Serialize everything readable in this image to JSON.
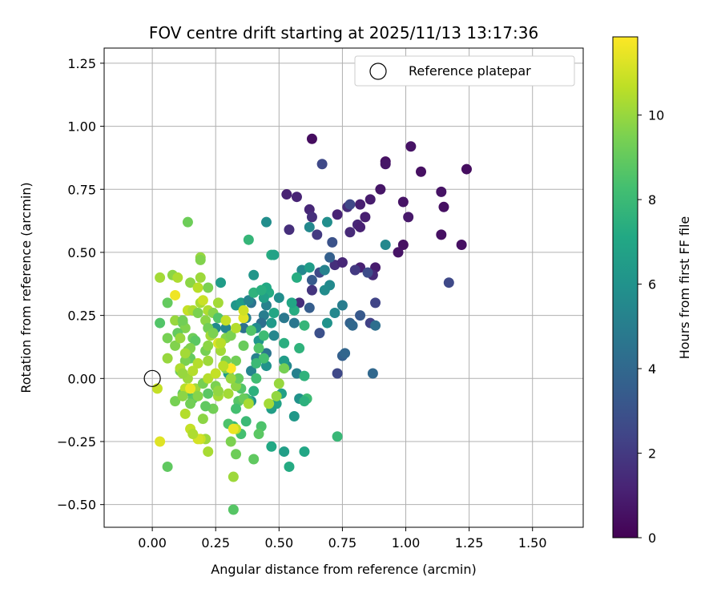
{
  "chart_data": {
    "type": "scatter",
    "title": "FOV centre drift starting at 2025/11/13 13:17:36",
    "xlabel": "Angular distance from reference (arcmin)",
    "ylabel": "Rotation from reference (arcmin)",
    "xlim": [
      -0.19,
      1.7
    ],
    "ylim": [
      -0.59,
      1.31
    ],
    "xticks": [
      "0.00",
      "0.25",
      "0.50",
      "0.75",
      "1.00",
      "1.25",
      "1.50"
    ],
    "xtick_values": [
      0,
      0.25,
      0.5,
      0.75,
      1.0,
      1.25,
      1.5
    ],
    "yticks": [
      "−0.50",
      "−0.25",
      "0.00",
      "0.25",
      "0.50",
      "0.75",
      "1.00",
      "1.25"
    ],
    "ytick_values": [
      -0.5,
      -0.25,
      0,
      0.25,
      0.5,
      0.75,
      1.0,
      1.25
    ],
    "grid": true,
    "legend": {
      "position": "top-right",
      "label": "Reference platepar"
    },
    "reference_point": {
      "x": 0,
      "y": 0
    },
    "colorbar": {
      "label": "Hours from first FF file",
      "ticks": [
        "0",
        "2",
        "4",
        "6",
        "8",
        "10"
      ],
      "tick_values": [
        0,
        2,
        4,
        6,
        8,
        10
      ],
      "range": [
        0,
        11.85
      ],
      "colormap": "viridis"
    },
    "points": [
      [
        0.63,
        0.95,
        0.4
      ],
      [
        1.02,
        0.92,
        0.6
      ],
      [
        0.92,
        0.86,
        0.5
      ],
      [
        0.92,
        0.85,
        0.7
      ],
      [
        1.06,
        0.82,
        0.5
      ],
      [
        1.24,
        0.83,
        0.4
      ],
      [
        1.14,
        0.74,
        0.6
      ],
      [
        0.9,
        0.75,
        0.7
      ],
      [
        0.86,
        0.71,
        0.9
      ],
      [
        0.99,
        0.7,
        0.6
      ],
      [
        1.15,
        0.68,
        0.5
      ],
      [
        0.53,
        0.73,
        1.1
      ],
      [
        0.57,
        0.72,
        1.2
      ],
      [
        0.62,
        0.67,
        1.3
      ],
      [
        0.82,
        0.69,
        1.0
      ],
      [
        0.77,
        0.68,
        1.5
      ],
      [
        0.73,
        0.65,
        1.2
      ],
      [
        1.01,
        0.64,
        0.8
      ],
      [
        0.84,
        0.64,
        1.0
      ],
      [
        0.81,
        0.61,
        1.3
      ],
      [
        0.82,
        0.6,
        1.1
      ],
      [
        0.63,
        0.64,
        1.6
      ],
      [
        1.14,
        0.57,
        0.5
      ],
      [
        0.99,
        0.53,
        0.5
      ],
      [
        0.97,
        0.5,
        0.6
      ],
      [
        1.22,
        0.53,
        0.5
      ],
      [
        0.54,
        0.59,
        1.6
      ],
      [
        0.78,
        0.58,
        1.4
      ],
      [
        0.65,
        0.57,
        2.0
      ],
      [
        0.72,
        0.45,
        1.6
      ],
      [
        0.75,
        0.46,
        1.3
      ],
      [
        0.82,
        0.44,
        1.1
      ],
      [
        0.88,
        0.44,
        0.9
      ],
      [
        0.8,
        0.43,
        2.0
      ],
      [
        0.87,
        0.41,
        1.4
      ],
      [
        0.85,
        0.42,
        2.7
      ],
      [
        1.17,
        0.38,
        2.6
      ],
      [
        0.67,
        0.85,
        2.6
      ],
      [
        0.78,
        0.69,
        2.6
      ],
      [
        0.71,
        0.54,
        3.0
      ],
      [
        0.66,
        0.42,
        2.6
      ],
      [
        0.63,
        0.39,
        3.4
      ],
      [
        0.58,
        0.3,
        1.5
      ],
      [
        0.63,
        0.35,
        1.8
      ],
      [
        0.7,
        0.48,
        3.6
      ],
      [
        0.88,
        0.3,
        2.4
      ],
      [
        0.86,
        0.22,
        2.3
      ],
      [
        0.82,
        0.25,
        3.3
      ],
      [
        0.78,
        0.22,
        3.7
      ],
      [
        0.79,
        0.21,
        4.0
      ],
      [
        0.88,
        0.21,
        4.3
      ],
      [
        0.75,
        0.09,
        3.6
      ],
      [
        0.73,
        0.02,
        2.6
      ],
      [
        0.76,
        0.1,
        3.9
      ],
      [
        0.66,
        0.18,
        2.9
      ],
      [
        0.87,
        0.02,
        4.0
      ],
      [
        0.62,
        0.28,
        3.5
      ],
      [
        0.92,
        0.53,
        5.5
      ],
      [
        0.69,
        0.62,
        5.8
      ],
      [
        0.62,
        0.6,
        5.5
      ],
      [
        0.45,
        0.62,
        5.8
      ],
      [
        0.59,
        0.43,
        5.5
      ],
      [
        0.68,
        0.43,
        5.2
      ],
      [
        0.7,
        0.37,
        5.6
      ],
      [
        0.68,
        0.35,
        5.7
      ],
      [
        0.72,
        0.26,
        5.5
      ],
      [
        0.75,
        0.29,
        5.0
      ],
      [
        0.69,
        0.22,
        6.0
      ],
      [
        0.62,
        0.44,
        6.5
      ],
      [
        0.56,
        0.22,
        4.7
      ],
      [
        0.52,
        0.24,
        4.8
      ],
      [
        0.45,
        0.29,
        5.2
      ],
      [
        0.44,
        0.25,
        5.0
      ],
      [
        0.5,
        0.32,
        5.8
      ],
      [
        0.39,
        0.3,
        4.5
      ],
      [
        0.37,
        0.24,
        5.0
      ],
      [
        0.43,
        0.22,
        4.3
      ],
      [
        0.4,
        0.41,
        6.2
      ],
      [
        0.33,
        0.29,
        6.2
      ],
      [
        0.35,
        0.3,
        6.5
      ],
      [
        0.36,
        0.2,
        4.4
      ],
      [
        0.41,
        0.2,
        5.6
      ],
      [
        0.38,
        0.31,
        5.3
      ],
      [
        0.45,
        0.1,
        4.6
      ],
      [
        0.48,
        0.17,
        5.4
      ],
      [
        0.42,
        0.15,
        6.2
      ],
      [
        0.41,
        0.08,
        5.2
      ],
      [
        0.39,
        0.03,
        5.3
      ],
      [
        0.45,
        0.05,
        6.0
      ],
      [
        0.39,
        -0.09,
        5.9
      ],
      [
        0.53,
        0.05,
        5.5
      ],
      [
        0.52,
        0.07,
        6.5
      ],
      [
        0.57,
        0.02,
        5.1
      ],
      [
        0.56,
        -0.15,
        6.3
      ],
      [
        0.58,
        -0.08,
        6.0
      ],
      [
        0.52,
        -0.29,
        6.6
      ],
      [
        0.6,
        -0.29,
        7.0
      ],
      [
        0.54,
        -0.35,
        7.2
      ],
      [
        0.51,
        -0.06,
        6.7
      ],
      [
        0.49,
        -0.1,
        6.8
      ],
      [
        0.47,
        -0.12,
        6.6
      ],
      [
        0.47,
        -0.27,
        7.1
      ],
      [
        0.3,
        0.02,
        6.5
      ],
      [
        0.29,
        0.2,
        5.4
      ],
      [
        0.25,
        0.2,
        5.6
      ],
      [
        0.27,
        0.38,
        6.5
      ],
      [
        0.46,
        0.34,
        7.2
      ],
      [
        0.47,
        0.49,
        7.3
      ],
      [
        0.48,
        0.49,
        6.8
      ],
      [
        0.38,
        0.55,
        7.8
      ],
      [
        0.57,
        0.4,
        7.3
      ],
      [
        0.56,
        0.27,
        7.3
      ],
      [
        0.55,
        0.3,
        7.0
      ],
      [
        0.58,
        0.12,
        7.6
      ],
      [
        0.52,
        0.14,
        7.4
      ],
      [
        0.6,
        0.21,
        7.8
      ],
      [
        0.6,
        0.01,
        7.6
      ],
      [
        0.61,
        -0.08,
        8.1
      ],
      [
        0.6,
        -0.09,
        7.5
      ],
      [
        0.73,
        -0.23,
        7.9
      ],
      [
        0.45,
        0.36,
        7.1
      ],
      [
        0.44,
        0.32,
        6.7
      ],
      [
        0.47,
        0.22,
        6.4
      ],
      [
        0.48,
        0.26,
        7.0
      ],
      [
        0.4,
        0.34,
        7.6
      ],
      [
        0.43,
        0.35,
        7.4
      ],
      [
        0.44,
        0.17,
        8.1
      ],
      [
        0.42,
        0.12,
        8.6
      ],
      [
        0.44,
        0.08,
        8.3
      ],
      [
        0.41,
        0.06,
        8.0
      ],
      [
        0.41,
        0.0,
        8.2
      ],
      [
        0.4,
        -0.05,
        7.5
      ],
      [
        0.37,
        -0.08,
        8.2
      ],
      [
        0.34,
        -0.09,
        8.7
      ],
      [
        0.33,
        -0.12,
        8.3
      ],
      [
        0.38,
        -0.09,
        7.9
      ],
      [
        0.37,
        -0.17,
        8.0
      ],
      [
        0.35,
        -0.22,
        8.3
      ],
      [
        0.43,
        -0.19,
        8.5
      ],
      [
        0.42,
        -0.22,
        8.8
      ],
      [
        0.4,
        -0.32,
        8.9
      ],
      [
        0.33,
        -0.3,
        9.2
      ],
      [
        0.35,
        -0.04,
        8.6
      ],
      [
        0.36,
        -0.08,
        9.1
      ],
      [
        0.39,
        0.19,
        8.6
      ],
      [
        0.36,
        0.13,
        9.1
      ],
      [
        0.33,
        0.07,
        9.3
      ],
      [
        0.29,
        0.16,
        9.7
      ],
      [
        0.31,
        0.17,
        9.5
      ],
      [
        0.32,
        -0.19,
        7.9
      ],
      [
        0.3,
        -0.18,
        8.5
      ],
      [
        0.31,
        -0.25,
        9.5
      ],
      [
        0.32,
        -0.52,
        8.7
      ],
      [
        0.32,
        -0.39,
        10.1
      ],
      [
        0.24,
        -0.12,
        9.3
      ],
      [
        0.21,
        -0.11,
        8.9
      ],
      [
        0.2,
        -0.16,
        9.8
      ],
      [
        0.16,
        -0.08,
        8.8
      ],
      [
        0.17,
        -0.04,
        10.1
      ],
      [
        0.15,
        -0.1,
        9.3
      ],
      [
        0.14,
        -0.05,
        8.4
      ],
      [
        0.12,
        -0.06,
        9.0
      ],
      [
        0.18,
        -0.07,
        9.7
      ],
      [
        0.21,
        -0.24,
        10.1
      ],
      [
        0.19,
        -0.24,
        10.9
      ],
      [
        0.22,
        -0.29,
        10.3
      ],
      [
        0.15,
        -0.2,
        10.8
      ],
      [
        0.13,
        -0.14,
        10.5
      ],
      [
        0.06,
        -0.35,
        8.9
      ],
      [
        0.03,
        -0.25,
        11.3
      ],
      [
        0.02,
        -0.04,
        10.8
      ],
      [
        0.06,
        0.16,
        9.4
      ],
      [
        0.09,
        0.13,
        9.6
      ],
      [
        0.12,
        0.22,
        9.0
      ],
      [
        0.13,
        0.2,
        9.6
      ],
      [
        0.1,
        0.18,
        9.0
      ],
      [
        0.03,
        0.22,
        8.6
      ],
      [
        0.06,
        0.3,
        9.0
      ],
      [
        0.08,
        0.41,
        9.8
      ],
      [
        0.03,
        0.4,
        10.2
      ],
      [
        0.1,
        0.4,
        10.4
      ],
      [
        0.09,
        0.33,
        11.6
      ],
      [
        0.15,
        0.38,
        9.8
      ],
      [
        0.18,
        0.36,
        10.6
      ],
      [
        0.19,
        0.3,
        10.3
      ],
      [
        0.14,
        0.27,
        10.8
      ],
      [
        0.16,
        0.27,
        10.4
      ],
      [
        0.18,
        0.26,
        9.5
      ],
      [
        0.2,
        0.31,
        10.9
      ],
      [
        0.22,
        0.27,
        10.4
      ],
      [
        0.24,
        0.26,
        9.7
      ],
      [
        0.26,
        0.24,
        8.6
      ],
      [
        0.26,
        0.3,
        10.2
      ],
      [
        0.21,
        0.23,
        9.8
      ],
      [
        0.22,
        0.2,
        9.3
      ],
      [
        0.23,
        0.17,
        10.2
      ],
      [
        0.24,
        0.18,
        9.5
      ],
      [
        0.29,
        0.07,
        9.4
      ],
      [
        0.27,
        0.11,
        10.2
      ],
      [
        0.26,
        0.14,
        11.2
      ],
      [
        0.27,
        0.14,
        10.6
      ],
      [
        0.21,
        0.11,
        9.4
      ],
      [
        0.22,
        0.07,
        10.1
      ],
      [
        0.14,
        0.11,
        9.3
      ],
      [
        0.15,
        0.08,
        9.0
      ],
      [
        0.16,
        0.16,
        9.2
      ],
      [
        0.09,
        0.23,
        10.0
      ],
      [
        0.12,
        0.23,
        9.3
      ],
      [
        0.11,
        0.16,
        10.0
      ],
      [
        0.14,
        0.62,
        9.2
      ],
      [
        0.19,
        0.48,
        10.0
      ],
      [
        0.19,
        0.47,
        9.6
      ],
      [
        0.19,
        0.4,
        10.1
      ],
      [
        0.22,
        0.36,
        9.5
      ],
      [
        0.17,
        0.15,
        8.8
      ],
      [
        0.15,
        0.12,
        9.6
      ],
      [
        0.14,
        0.0,
        10.1
      ],
      [
        0.2,
        -0.02,
        9.4
      ],
      [
        0.22,
        -0.06,
        8.8
      ],
      [
        0.25,
        -0.03,
        9.5
      ],
      [
        0.26,
        -0.07,
        10.2
      ],
      [
        0.22,
        0.0,
        10.5
      ],
      [
        0.26,
        -0.05,
        10.1
      ],
      [
        0.11,
        0.03,
        9.2
      ],
      [
        0.09,
        -0.09,
        9.4
      ],
      [
        0.06,
        0.08,
        10.0
      ],
      [
        0.13,
        0.07,
        9.5
      ],
      [
        0.29,
        0.04,
        9.7
      ],
      [
        0.3,
        -0.06,
        10.2
      ],
      [
        0.33,
        -0.03,
        9.8
      ],
      [
        0.34,
        0.0,
        9.0
      ],
      [
        0.38,
        -0.1,
        10.3
      ],
      [
        0.46,
        -0.1,
        10.2
      ],
      [
        0.49,
        -0.07,
        9.9
      ],
      [
        0.5,
        -0.02,
        10.0
      ],
      [
        0.52,
        0.04,
        9.4
      ],
      [
        0.31,
        0.04,
        11.8
      ],
      [
        0.29,
        0.23,
        10.8
      ],
      [
        0.36,
        0.24,
        11.3
      ],
      [
        0.36,
        0.27,
        11.0
      ],
      [
        0.33,
        0.2,
        10.5
      ],
      [
        0.28,
        0.05,
        10.6
      ],
      [
        0.31,
        0.0,
        10.0
      ],
      [
        0.33,
        -0.2,
        10.7
      ],
      [
        0.32,
        -0.2,
        11.5
      ],
      [
        0.22,
        0.13,
        9.8
      ],
      [
        0.18,
        0.06,
        10.5
      ],
      [
        0.16,
        0.03,
        10.5
      ],
      [
        0.13,
        -0.04,
        10.6
      ],
      [
        0.11,
        0.04,
        10.4
      ],
      [
        0.12,
        0.02,
        10.0
      ],
      [
        0.12,
        -0.07,
        9.8
      ],
      [
        0.15,
        -0.04,
        11.5
      ],
      [
        0.13,
        0.1,
        10.2
      ],
      [
        0.18,
        -0.24,
        11.1
      ],
      [
        0.16,
        -0.22,
        10.4
      ],
      [
        0.26,
        -0.05,
        9.9
      ],
      [
        0.25,
        0.02,
        10.8
      ]
    ]
  }
}
